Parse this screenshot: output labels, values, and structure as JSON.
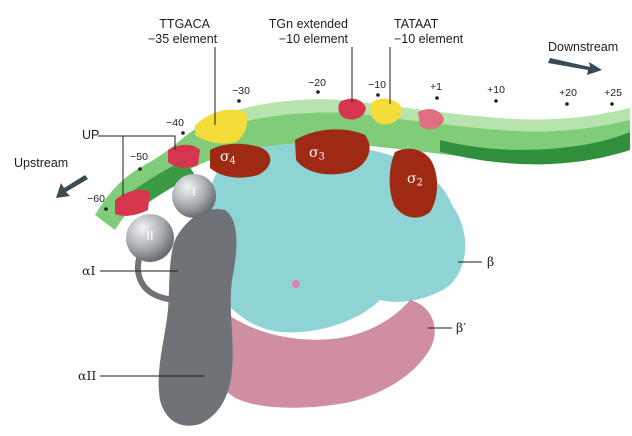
{
  "promoter_elements": [
    {
      "line1": "TTGACA",
      "line2": "−35 element"
    },
    {
      "line1": "TGn extended",
      "line2": "−10 element"
    },
    {
      "line1": "TATAAT",
      "line2": "−10 element"
    }
  ],
  "positions": [
    "−60",
    "−50",
    "−40",
    "−30",
    "−20",
    "−10",
    "+1",
    "+10",
    "+20",
    "+25"
  ],
  "directions": {
    "downstream": "Downstream",
    "upstream": "Upstream"
  },
  "up_label": "UP",
  "sigma": {
    "symbol": "σ",
    "domains": [
      "4",
      "3",
      "2"
    ]
  },
  "subunits": {
    "alpha_one": "αI",
    "alpha_two": "αII",
    "beta": "β",
    "beta_prime": "β′"
  },
  "alpha_ctd": [
    "I",
    "II"
  ],
  "colors": {
    "dna_green": "#5fbf5a",
    "dna_dark_green": "#2e8b3a",
    "dna_light": "#bde6b3",
    "element_yellow": "#f2dd3a",
    "up_red": "#d6364d",
    "sigma": "#9e2a14",
    "beta": "#8fd4d4",
    "beta_prime": "#cf8fa0",
    "alpha": "#6f7378",
    "ctd": "#a9adb1"
  }
}
